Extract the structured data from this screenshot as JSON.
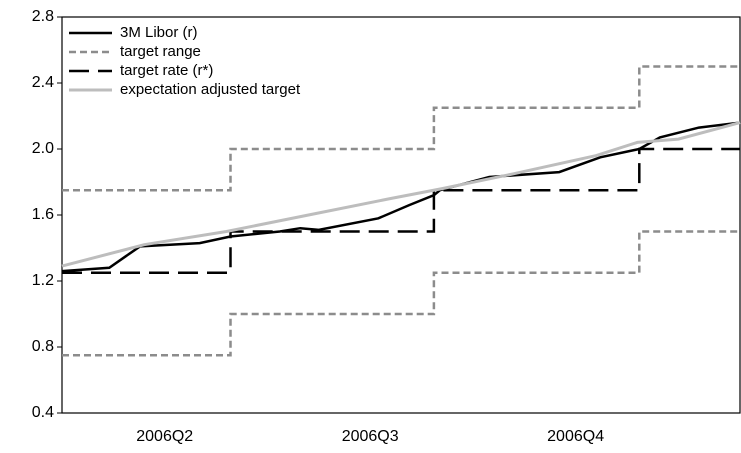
{
  "chart_data": {
    "type": "line",
    "xlim": [
      0,
      3.3
    ],
    "xticks": [
      {
        "value": 0.5,
        "label": "2006Q2"
      },
      {
        "value": 1.5,
        "label": "2006Q3"
      },
      {
        "value": 2.5,
        "label": "2006Q4"
      }
    ],
    "ylim": [
      0.4,
      2.8
    ],
    "yticks": [
      0.4,
      0.8,
      1.2,
      1.6,
      {
        "value": 2,
        "label": "2.0"
      },
      2.4,
      2.8
    ],
    "legend": "upper left",
    "series": [
      {
        "name": "3M Libor (r)",
        "color": "#000000",
        "style": "solid",
        "width": 2.5,
        "x": [
          0,
          0.23,
          0.31,
          0.38,
          0.67,
          0.82,
          1.06,
          1.16,
          1.25,
          1.54,
          1.69,
          1.81,
          1.84,
          2.08,
          2.42,
          2.62,
          2.81,
          2.91,
          3.1,
          3.3
        ],
        "values": [
          1.26,
          1.28,
          1.35,
          1.41,
          1.43,
          1.47,
          1.5,
          1.52,
          1.51,
          1.58,
          1.66,
          1.72,
          1.75,
          1.83,
          1.86,
          1.95,
          2.0,
          2.07,
          2.13,
          2.16
        ]
      },
      {
        "name": "target range",
        "color": "#8c8c8c",
        "style": "dashed",
        "width": 2.5,
        "x": [
          0,
          0.82,
          0.82,
          1.81,
          1.81,
          2.81,
          2.81,
          3.3
        ],
        "lower": [
          0.75,
          0.75,
          1.0,
          1.0,
          1.25,
          1.25,
          1.5,
          1.5
        ],
        "upper": [
          1.75,
          1.75,
          2.0,
          2.0,
          2.25,
          2.25,
          2.5,
          2.5
        ]
      },
      {
        "name": "target rate (r*)",
        "color": "#000000",
        "style": "longdash",
        "width": 2.5,
        "x": [
          0,
          0.82,
          0.82,
          1.81,
          1.81,
          2.81,
          2.81,
          3.3
        ],
        "values": [
          1.25,
          1.25,
          1.5,
          1.5,
          1.75,
          1.75,
          2.0,
          2.0
        ]
      },
      {
        "name": "expectation adjusted target",
        "color": "#bdbdbd",
        "style": "solid",
        "width": 3,
        "x": [
          0,
          0.4,
          0.8,
          1.2,
          1.6,
          1.85,
          2.2,
          2.6,
          2.8,
          3.0,
          3.3
        ],
        "values": [
          1.29,
          1.42,
          1.5,
          1.6,
          1.7,
          1.76,
          1.85,
          1.96,
          2.04,
          2.06,
          2.16
        ]
      }
    ]
  }
}
